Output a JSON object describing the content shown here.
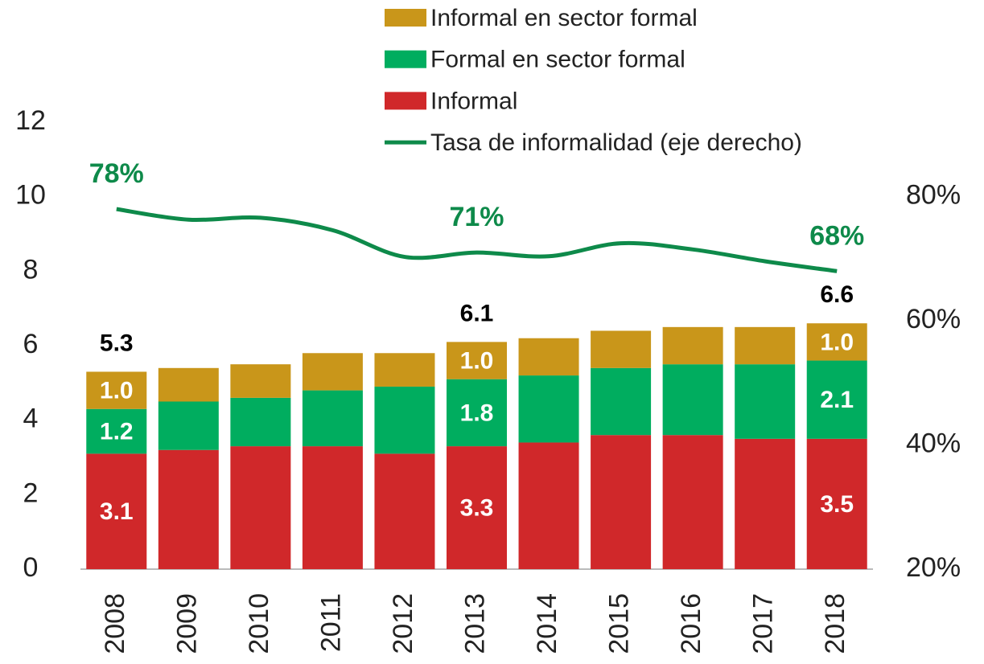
{
  "chart_data": {
    "type": "bar",
    "stacked": true,
    "categories": [
      "2008",
      "2009",
      "2010",
      "2011",
      "2012",
      "2013",
      "2014",
      "2015",
      "2016",
      "2017",
      "2018"
    ],
    "series": [
      {
        "name": "Informal",
        "color": "#d0282a",
        "values": [
          3.1,
          3.2,
          3.3,
          3.3,
          3.1,
          3.3,
          3.4,
          3.6,
          3.6,
          3.5,
          3.5
        ],
        "value_labels": [
          "3.1",
          null,
          null,
          null,
          null,
          "3.3",
          null,
          null,
          null,
          null,
          "3.5"
        ]
      },
      {
        "name": "Formal en sector formal",
        "color": "#00ad5f",
        "values": [
          1.2,
          1.3,
          1.3,
          1.5,
          1.8,
          1.8,
          1.8,
          1.8,
          1.9,
          2.0,
          2.1
        ],
        "value_labels": [
          "1.2",
          null,
          null,
          null,
          null,
          "1.8",
          null,
          null,
          null,
          null,
          "2.1"
        ]
      },
      {
        "name": "Informal en sector formal",
        "color": "#c9961a",
        "values": [
          1.0,
          0.9,
          0.9,
          1.0,
          0.9,
          1.0,
          1.0,
          1.0,
          1.0,
          1.0,
          1.0
        ],
        "value_labels": [
          "1.0",
          null,
          null,
          null,
          null,
          "1.0",
          null,
          null,
          null,
          null,
          "1.0"
        ]
      },
      {
        "name": "Tasa de informalidad (eje derecho)",
        "type": "line",
        "axis": "y2",
        "color": "#0e8a4a",
        "values": [
          78,
          76.3,
          76.6,
          74.6,
          70.3,
          71,
          70.4,
          72.5,
          71.5,
          69.6,
          68
        ],
        "value_labels": [
          "78%",
          null,
          null,
          null,
          null,
          "71%",
          null,
          null,
          null,
          null,
          "68%"
        ]
      }
    ],
    "totals": [
      5.3,
      null,
      null,
      null,
      null,
      6.1,
      null,
      null,
      null,
      null,
      6.6
    ],
    "ylim": [
      0,
      12
    ],
    "yticks": [
      0,
      2,
      4,
      6,
      8,
      10,
      12
    ],
    "y2lim": [
      20,
      92
    ],
    "y2ticks": [
      {
        "value": 20,
        "label": "20%"
      },
      {
        "value": 40,
        "label": "40%"
      },
      {
        "value": 60,
        "label": "60%"
      },
      {
        "value": 80,
        "label": "80%"
      }
    ],
    "grid": false
  }
}
